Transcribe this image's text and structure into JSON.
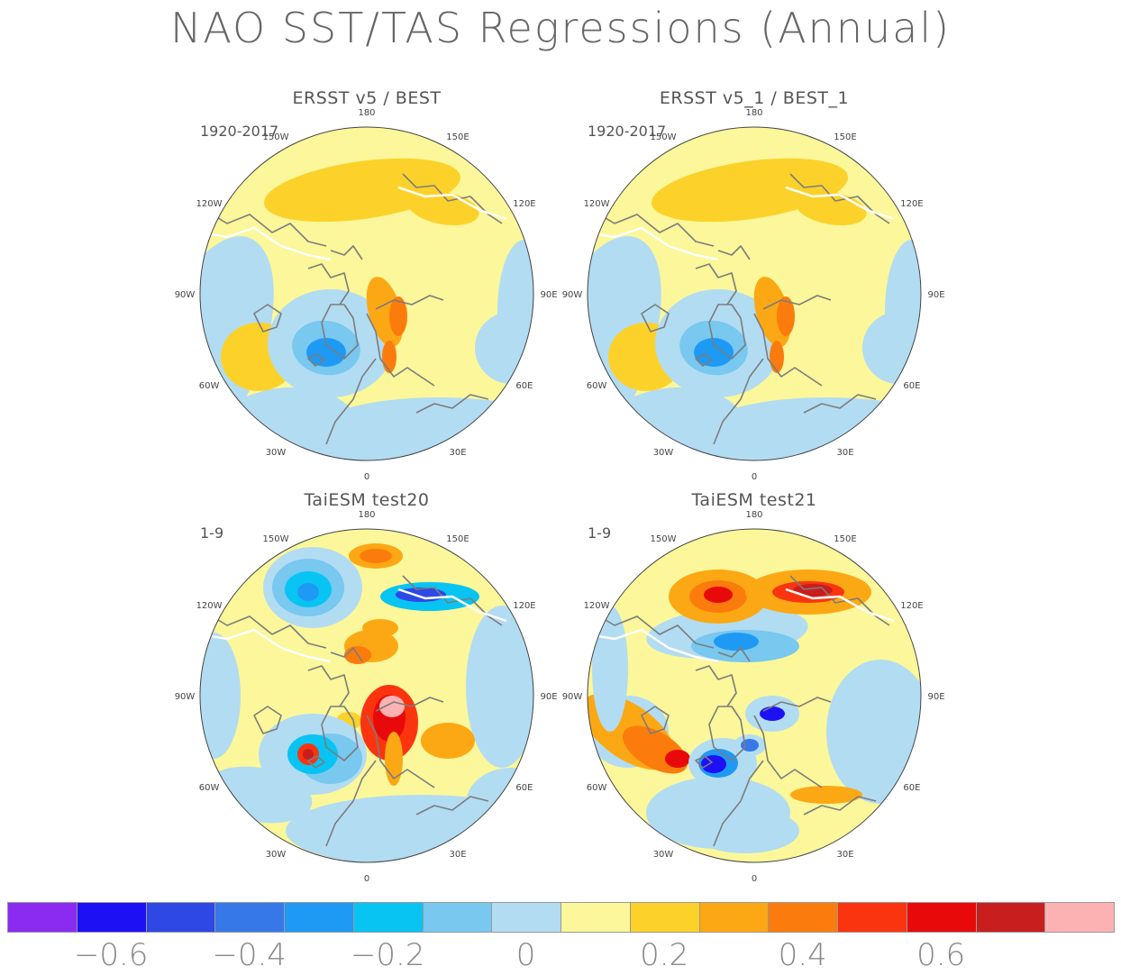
{
  "title": "NAO SST/TAS Regressions (Annual)",
  "panels": [
    {
      "title": "ERSST v5 / BEST",
      "period": "1920-2017"
    },
    {
      "title": "ERSST v5_1 / BEST_1",
      "period": "1920-2017"
    },
    {
      "title": "TaiESM test20",
      "period": "1-9"
    },
    {
      "title": "TaiESM test21",
      "period": "1-9"
    }
  ],
  "longitude_labels": {
    "top": "180",
    "upper_left": "150W",
    "upper_right": "150E",
    "left_upper": "120W",
    "right_upper": "120E",
    "left": "90W",
    "right": "90E",
    "left_lower": "60W",
    "right_lower": "60E",
    "bottom_left": "30W",
    "bottom_right": "30E",
    "bottom": "0"
  },
  "colorbar": {
    "colors": [
      "#8b2af0",
      "#1e10f5",
      "#2e48e6",
      "#3678e8",
      "#1e9af5",
      "#08c4f2",
      "#78c8f0",
      "#b2dcf2",
      "#fbf79a",
      "#fcd22a",
      "#fca814",
      "#fb7c0c",
      "#fb3410",
      "#e80a0a",
      "#c81e1e",
      "#fcb2b2"
    ],
    "labels": [
      "−0.6",
      "−0.4",
      "−0.2",
      "0",
      "0.2",
      "0.4",
      "0.6"
    ],
    "label_positions": [
      1.5,
      3.5,
      5.5,
      7.5,
      9.5,
      11.5,
      13.5
    ]
  },
  "palette": {
    "ocean_base": "#fbf79a",
    "coast": "#7c7c7c",
    "land_edge": "#ffffff"
  }
}
